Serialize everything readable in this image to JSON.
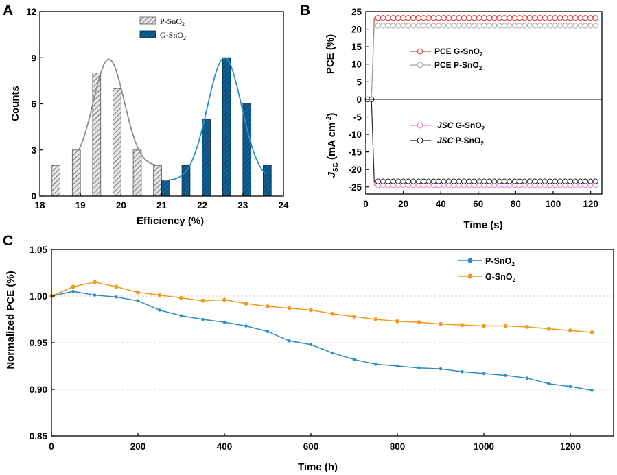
{
  "panels": {
    "a": "A",
    "b": "B",
    "c": "C"
  },
  "colors": {
    "p_hist": "#b8b8b8",
    "p_fit": "#8c8c8c",
    "g_hist": "#0f5f95",
    "g_fit": "#2a90c8",
    "pce_g": "#e63232",
    "pce_p": "#a8a8a8",
    "jsc_g": "#ef7fd8",
    "jsc_p": "#222222",
    "stab_p": "#2b8cc4",
    "stab_g": "#f39a1e"
  },
  "chart_data": [
    {
      "id": "A",
      "type": "bar",
      "title": "",
      "xlabel": "Efficiency (%)",
      "ylabel": "Counts",
      "xlim": [
        18,
        24
      ],
      "ylim": [
        0,
        12
      ],
      "xticks": [
        18,
        19,
        20,
        21,
        22,
        23,
        24
      ],
      "yticks": [
        0,
        3,
        6,
        9,
        12
      ],
      "bar_width": 0.2,
      "legend": [
        {
          "name": "P-SnO",
          "sub": "2"
        },
        {
          "name": "G-SnO",
          "sub": "2"
        }
      ],
      "series": [
        {
          "name": "P-SnO2",
          "x": [
            18.4,
            18.9,
            19.4,
            19.9,
            20.4,
            20.9
          ],
          "values": [
            2,
            3,
            8,
            7,
            3,
            2
          ],
          "fit": {
            "center": 19.7,
            "sigma": 0.38,
            "height": 8.9,
            "base": 1.95,
            "range": [
              18.95,
              21.0
            ]
          }
        },
        {
          "name": "G-SnO2",
          "x": [
            21.1,
            21.6,
            22.1,
            22.6,
            23.1,
            23.6
          ],
          "values": [
            1,
            2,
            5,
            9,
            6,
            2
          ],
          "fit": {
            "center": 22.55,
            "sigma": 0.42,
            "height": 9.0,
            "base": 1.0,
            "range": [
              21.05,
              23.55
            ]
          }
        }
      ]
    },
    {
      "id": "B",
      "type": "line",
      "title": "",
      "xlabel": "Time (s)",
      "ylabel_top": "PCE (%)",
      "ylabel_bottom": "J",
      "ylabel_bottom_sub": "SC",
      "ylabel_bottom_rest": " (mA cm",
      "ylabel_bottom_sup": "-2",
      "ylabel_bottom_close": ")",
      "xlim": [
        0,
        126
      ],
      "ylim": [
        -27,
        25
      ],
      "xticks": [
        0,
        20,
        40,
        60,
        80,
        100,
        120
      ],
      "yticks": [
        25,
        20,
        15,
        10,
        5,
        0,
        -5,
        -10,
        -15,
        -20,
        -25
      ],
      "legend": [
        {
          "prefix": "PCE",
          "name": " G-SnO",
          "sub": "2"
        },
        {
          "prefix": "PCE",
          "name": " P-SnO",
          "sub": "2"
        },
        {
          "prefix": "JSC",
          "name": " G-SnO",
          "sub": "2"
        },
        {
          "prefix": "JSC",
          "name": " P-SnO",
          "sub": "2"
        }
      ],
      "onset": 4.5,
      "series": [
        {
          "name": "PCE G-SnO2",
          "start": 0,
          "steady": 23.2
        },
        {
          "name": "PCE P-SnO2",
          "start": 0,
          "steady": 21.0
        },
        {
          "name": "JSC G-SnO2",
          "start": 0,
          "steady": -24.5
        },
        {
          "name": "JSC P-SnO2",
          "start": 0,
          "steady": -23.4
        }
      ]
    },
    {
      "id": "C",
      "type": "line",
      "title": "",
      "xlabel": "Time (h)",
      "ylabel": "Normalized PCE (%)",
      "xlim": [
        0,
        1300
      ],
      "ylim": [
        0.85,
        1.05
      ],
      "xticks": [
        0,
        200,
        400,
        600,
        800,
        1000,
        1200
      ],
      "yticks": [
        0.85,
        0.9,
        0.95,
        1.0,
        1.05
      ],
      "grid": true,
      "legend": [
        {
          "name": "P-SnO",
          "sub": "2"
        },
        {
          "name": "G-SnO",
          "sub": "2"
        }
      ],
      "x": [
        0,
        50,
        100,
        150,
        200,
        250,
        300,
        350,
        400,
        450,
        500,
        550,
        600,
        650,
        700,
        750,
        800,
        850,
        900,
        950,
        1000,
        1050,
        1100,
        1150,
        1200,
        1250
      ],
      "series": [
        {
          "name": "P-SnO2",
          "values": [
            1.0,
            1.005,
            1.001,
            0.999,
            0.995,
            0.985,
            0.979,
            0.975,
            0.972,
            0.968,
            0.962,
            0.952,
            0.948,
            0.939,
            0.932,
            0.927,
            0.925,
            0.923,
            0.922,
            0.919,
            0.917,
            0.915,
            0.912,
            0.906,
            0.903,
            0.899
          ]
        },
        {
          "name": "G-SnO2",
          "values": [
            1.0,
            1.01,
            1.015,
            1.01,
            1.004,
            1.001,
            0.998,
            0.995,
            0.996,
            0.992,
            0.989,
            0.987,
            0.985,
            0.981,
            0.978,
            0.975,
            0.973,
            0.972,
            0.97,
            0.969,
            0.968,
            0.968,
            0.967,
            0.965,
            0.963,
            0.961
          ]
        }
      ]
    }
  ]
}
